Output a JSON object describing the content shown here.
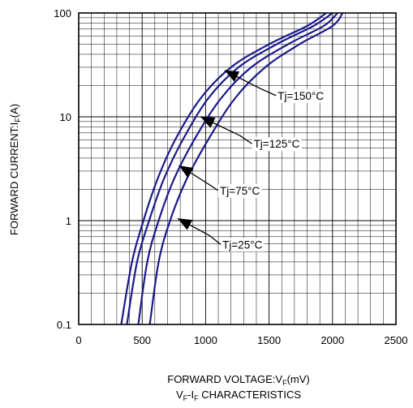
{
  "chart_data": {
    "type": "line",
    "xlabel": {
      "main": "FORWARD VOLTAGE:V",
      "sub": "F",
      "unit": "(mV)"
    },
    "ylabel": {
      "main": "FORWARD CURRENT:I",
      "sub": "F",
      "unit": "(A)"
    },
    "caption": {
      "a": "V",
      "a_sub": "F",
      "b": "-I",
      "b_sub": "F",
      "c": " CHARACTERISTICS"
    },
    "xlim": [
      0,
      2500
    ],
    "ylim": [
      0.1,
      100
    ],
    "y_scale": "log",
    "grid": true,
    "x_ticks": [
      {
        "v": 0,
        "label": "0"
      },
      {
        "v": 500,
        "label": "500"
      },
      {
        "v": 1000,
        "label": "1000"
      },
      {
        "v": 1500,
        "label": "1500"
      },
      {
        "v": 2000,
        "label": "2000"
      },
      {
        "v": 2500,
        "label": "2500"
      }
    ],
    "y_ticks": [
      {
        "v": 0.1,
        "label": "0.1"
      },
      {
        "v": 1,
        "label": "1"
      },
      {
        "v": 10,
        "label": "10"
      },
      {
        "v": 100,
        "label": "100"
      }
    ],
    "line_color": "#1a1a8c",
    "series": [
      {
        "name": "Tj=150°C",
        "x": [
          335,
          420,
          510,
          620,
          760,
          960,
          1200,
          1500,
          1800,
          1950
        ],
        "y": [
          0.1,
          0.4,
          1.0,
          2.5,
          6.0,
          15,
          30,
          50,
          75,
          100
        ]
      },
      {
        "name": "Tj=125°C",
        "x": [
          380,
          460,
          555,
          670,
          820,
          1020,
          1260,
          1560,
          1850,
          2000
        ],
        "y": [
          0.1,
          0.4,
          1.0,
          2.5,
          6.0,
          15,
          30,
          50,
          75,
          100
        ]
      },
      {
        "name": "Tj=75°C",
        "x": [
          470,
          540,
          630,
          750,
          910,
          1120,
          1360,
          1650,
          1930,
          2040
        ],
        "y": [
          0.1,
          0.4,
          1.0,
          2.5,
          6.0,
          15,
          30,
          50,
          75,
          100
        ]
      },
      {
        "name": "Tj=25°C",
        "x": [
          560,
          630,
          720,
          850,
          1020,
          1230,
          1470,
          1740,
          2000,
          2080
        ],
        "y": [
          0.1,
          0.4,
          1.0,
          2.5,
          6.0,
          15,
          30,
          50,
          75,
          100
        ]
      }
    ],
    "annotations": [
      {
        "series": "Tj=150°C",
        "label_at": [
          1750,
          16
        ],
        "arrow_to": [
          1150,
          28
        ],
        "arrow_tail": [
          1420,
          19
        ]
      },
      {
        "series": "Tj=125°C",
        "label_at": [
          1560,
          5.5
        ],
        "arrow_to": [
          960,
          10
        ],
        "arrow_tail": [
          1270,
          6.6
        ]
      },
      {
        "series": "Tj=75°C",
        "label_at": [
          1270,
          1.95
        ],
        "arrow_to": [
          790,
          3.4
        ],
        "arrow_tail": [
          1010,
          2.3
        ]
      },
      {
        "series": "Tj=25°C",
        "label_at": [
          1290,
          0.59
        ],
        "arrow_to": [
          780,
          1.05
        ],
        "arrow_tail": [
          1030,
          0.72
        ]
      }
    ]
  }
}
